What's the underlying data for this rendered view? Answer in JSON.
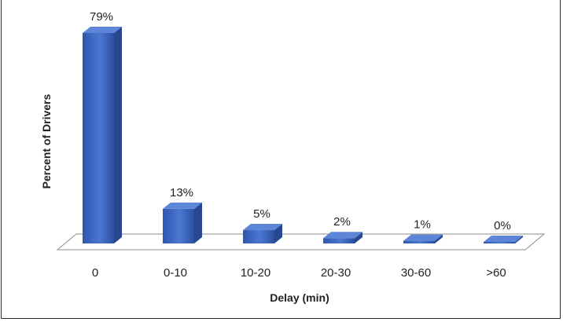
{
  "chart_data": {
    "type": "bar",
    "title": "",
    "xlabel": "Delay (min)",
    "ylabel": "Percent of Drivers",
    "categories": [
      "0",
      "0-10",
      "10-20",
      "20-30",
      "30-60",
      ">60"
    ],
    "values": [
      79,
      13,
      5,
      2,
      1,
      0
    ],
    "data_labels": [
      "79%",
      "13%",
      "5%",
      "2%",
      "1%",
      "0%"
    ],
    "grid": false,
    "legend": "none",
    "bar_color": "#3a66c4"
  }
}
